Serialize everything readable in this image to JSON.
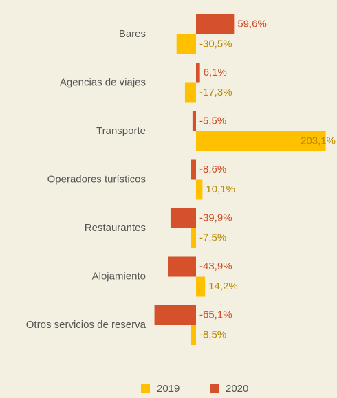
{
  "chart_data": {
    "type": "barh",
    "categories": [
      "Bares",
      "Agencias de viajes",
      "Transporte",
      "Operadores turísticos",
      "Restaurantes",
      "Alojamiento",
      "Otros servicios de reserva"
    ],
    "series": [
      {
        "name": "2019",
        "color": "#ffc000",
        "label_color": "#b88a00",
        "values": [
          -30.5,
          -17.3,
          203.1,
          10.1,
          -7.5,
          14.2,
          -8.5
        ],
        "value_labels": [
          "-30,5%",
          "-17,3%",
          "203,1%",
          "10,1%",
          "-7,5%",
          "14,2%",
          "-8,5%"
        ]
      },
      {
        "name": "2020",
        "color": "#d5512b",
        "label_color": "#cf4b26",
        "values": [
          59.6,
          6.1,
          -5.5,
          -8.6,
          -39.9,
          -43.9,
          -65.1
        ],
        "value_labels": [
          "59,6%",
          "6,1%",
          "-5,5%",
          "-8,6%",
          "-39,9%",
          "-43,9%",
          "-65,1%"
        ]
      }
    ],
    "xlim": [
      -70,
      210
    ],
    "legend": "bottom"
  }
}
